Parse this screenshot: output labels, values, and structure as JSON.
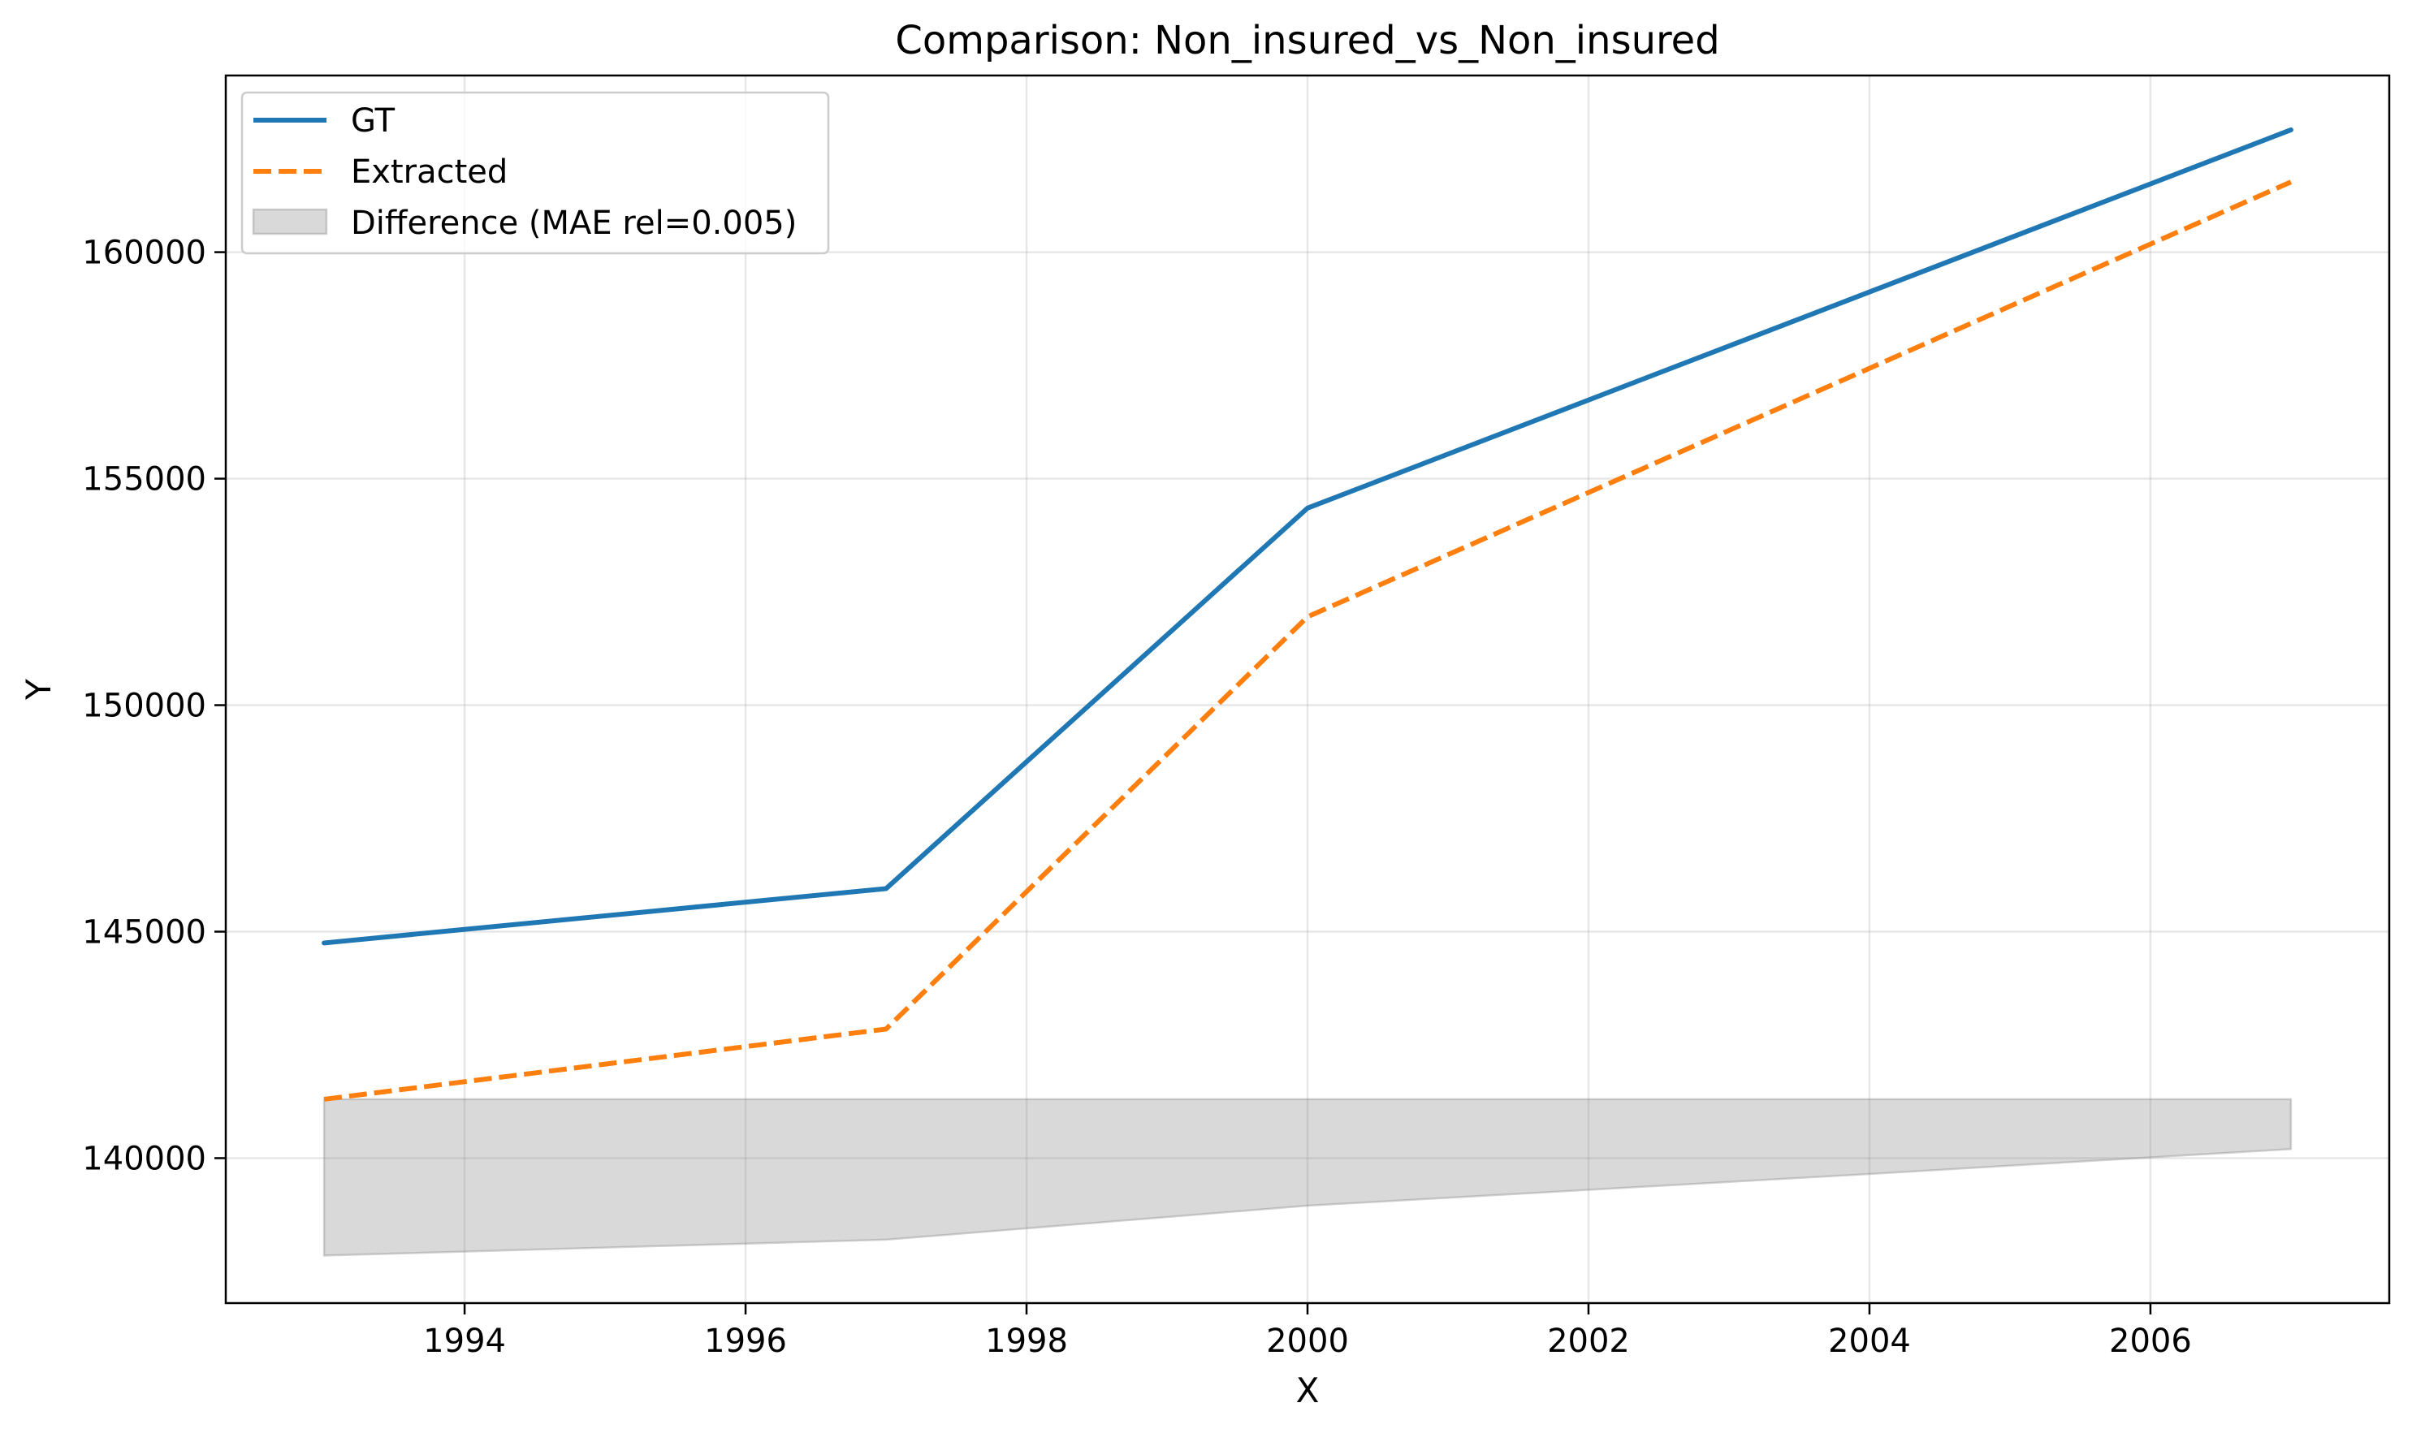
{
  "chart_data": {
    "type": "line",
    "title": "Comparison: Non_insured_vs_Non_insured",
    "xlabel": "X",
    "ylabel": "Y",
    "xlim": [
      1992.3,
      2007.7
    ],
    "ylim": [
      136800,
      163900
    ],
    "grid": true,
    "legend_position": "top-left",
    "x_ticks": [
      1994,
      1996,
      1998,
      2000,
      2002,
      2004,
      2006
    ],
    "y_ticks": [
      140000,
      145000,
      150000,
      155000,
      160000
    ],
    "series": [
      {
        "name": "GT",
        "style": "solid",
        "color": "#1f77b4",
        "x": [
          1993,
          1997,
          2000,
          2007
        ],
        "y": [
          144750,
          145950,
          154350,
          162700
        ]
      },
      {
        "name": "Extracted",
        "style": "dashed",
        "color": "#ff7f0e",
        "x": [
          1993,
          1997,
          2000,
          2007
        ],
        "y": [
          141300,
          142850,
          151950,
          161550
        ]
      }
    ],
    "difference_band": {
      "label": "Difference (MAE rel=0.005)",
      "color": "#808080",
      "x": [
        1993,
        1997,
        1998,
        2000,
        2002,
        2004,
        2007
      ],
      "upper": [
        141300,
        141300,
        141300,
        141300,
        141300,
        141300,
        141300
      ],
      "lower": [
        137850,
        138200,
        138450,
        138950,
        139300,
        139650,
        140200
      ]
    }
  }
}
